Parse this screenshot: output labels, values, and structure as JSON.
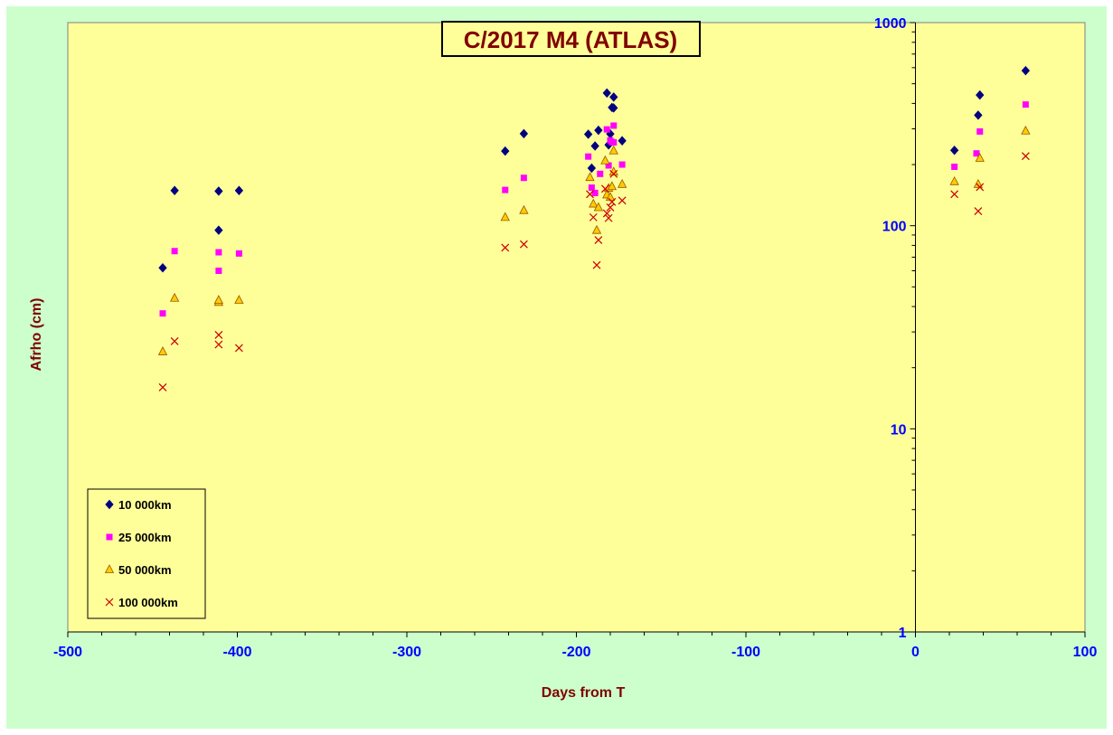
{
  "chart_data": {
    "type": "scatter",
    "title": "C/2017 M4 (ATLAS)",
    "xlabel": "Days from T",
    "ylabel": "Afrho (cm)",
    "xlim": [
      -500,
      100
    ],
    "ylim": [
      1,
      1000
    ],
    "y_scale": "log",
    "x_ticks": [
      -500,
      -400,
      -300,
      -200,
      -100,
      0,
      100
    ],
    "y_ticks": [
      1,
      10,
      100,
      1000
    ],
    "grid": false,
    "legend_position": "bottom-left",
    "colors": {
      "plot_background": "#ffff99",
      "chart_background": "#ccffcc",
      "tick_labels": "#0000ff",
      "axis_titles": "#800000"
    },
    "series": [
      {
        "name": "10 000km",
        "marker": "diamond",
        "color": "#000080",
        "points": [
          [
            -444,
            62
          ],
          [
            -437,
            149
          ],
          [
            -411,
            148
          ],
          [
            -411,
            95
          ],
          [
            -399,
            149
          ],
          [
            -242,
            233
          ],
          [
            -231,
            284
          ],
          [
            -193,
            282
          ],
          [
            -191,
            192
          ],
          [
            -189,
            247
          ],
          [
            -187,
            295
          ],
          [
            -182,
            450
          ],
          [
            -181,
            250
          ],
          [
            -180,
            283
          ],
          [
            -179,
            382
          ],
          [
            -178,
            380
          ],
          [
            -178,
            430
          ],
          [
            -173,
            262
          ],
          [
            23,
            235
          ],
          [
            37,
            350
          ],
          [
            38,
            440
          ],
          [
            65,
            580
          ]
        ]
      },
      {
        "name": "25 000km",
        "marker": "square",
        "color": "#ff00ff",
        "points": [
          [
            -444,
            37
          ],
          [
            -437,
            75
          ],
          [
            -411,
            74
          ],
          [
            -411,
            60
          ],
          [
            -399,
            73
          ],
          [
            -242,
            150
          ],
          [
            -231,
            172
          ],
          [
            -193,
            219
          ],
          [
            -191,
            154
          ],
          [
            -189,
            145
          ],
          [
            -186,
            180
          ],
          [
            -182,
            298
          ],
          [
            -181,
            198
          ],
          [
            -180,
            263
          ],
          [
            -179,
            258
          ],
          [
            -178,
            311
          ],
          [
            -178,
            257
          ],
          [
            -173,
            200
          ],
          [
            23,
            195
          ],
          [
            36,
            227
          ],
          [
            38,
            291
          ],
          [
            65,
            395
          ]
        ]
      },
      {
        "name": "50 000km",
        "marker": "triangle",
        "color": "#ffcc00",
        "points": [
          [
            -444,
            24
          ],
          [
            -437,
            44
          ],
          [
            -411,
            42
          ],
          [
            -411,
            43
          ],
          [
            -399,
            43
          ],
          [
            -242,
            110
          ],
          [
            -231,
            119
          ],
          [
            -192,
            173
          ],
          [
            -190,
            128
          ],
          [
            -188,
            95
          ],
          [
            -187,
            123
          ],
          [
            -183,
            209
          ],
          [
            -182,
            142
          ],
          [
            -181,
            153
          ],
          [
            -180,
            138
          ],
          [
            -179,
            156
          ],
          [
            -178,
            184
          ],
          [
            -178,
            234
          ],
          [
            -173,
            160
          ],
          [
            23,
            165
          ],
          [
            37,
            160
          ],
          [
            38,
            215
          ],
          [
            65,
            293
          ]
        ]
      },
      {
        "name": "100 000km",
        "marker": "x",
        "color": "#cc0000",
        "points": [
          [
            -444,
            16
          ],
          [
            -437,
            27
          ],
          [
            -411,
            29
          ],
          [
            -411,
            26
          ],
          [
            -399,
            25
          ],
          [
            -242,
            78
          ],
          [
            -231,
            81
          ],
          [
            -192,
            143
          ],
          [
            -190,
            110
          ],
          [
            -187,
            85
          ],
          [
            -188,
            64
          ],
          [
            -183,
            152
          ],
          [
            -182,
            115
          ],
          [
            -181,
            109
          ],
          [
            -180,
            123
          ],
          [
            -179,
            131
          ],
          [
            -178,
            180
          ],
          [
            -173,
            133
          ],
          [
            23,
            143
          ],
          [
            37,
            118
          ],
          [
            38,
            155
          ],
          [
            65,
            220
          ]
        ]
      }
    ]
  }
}
